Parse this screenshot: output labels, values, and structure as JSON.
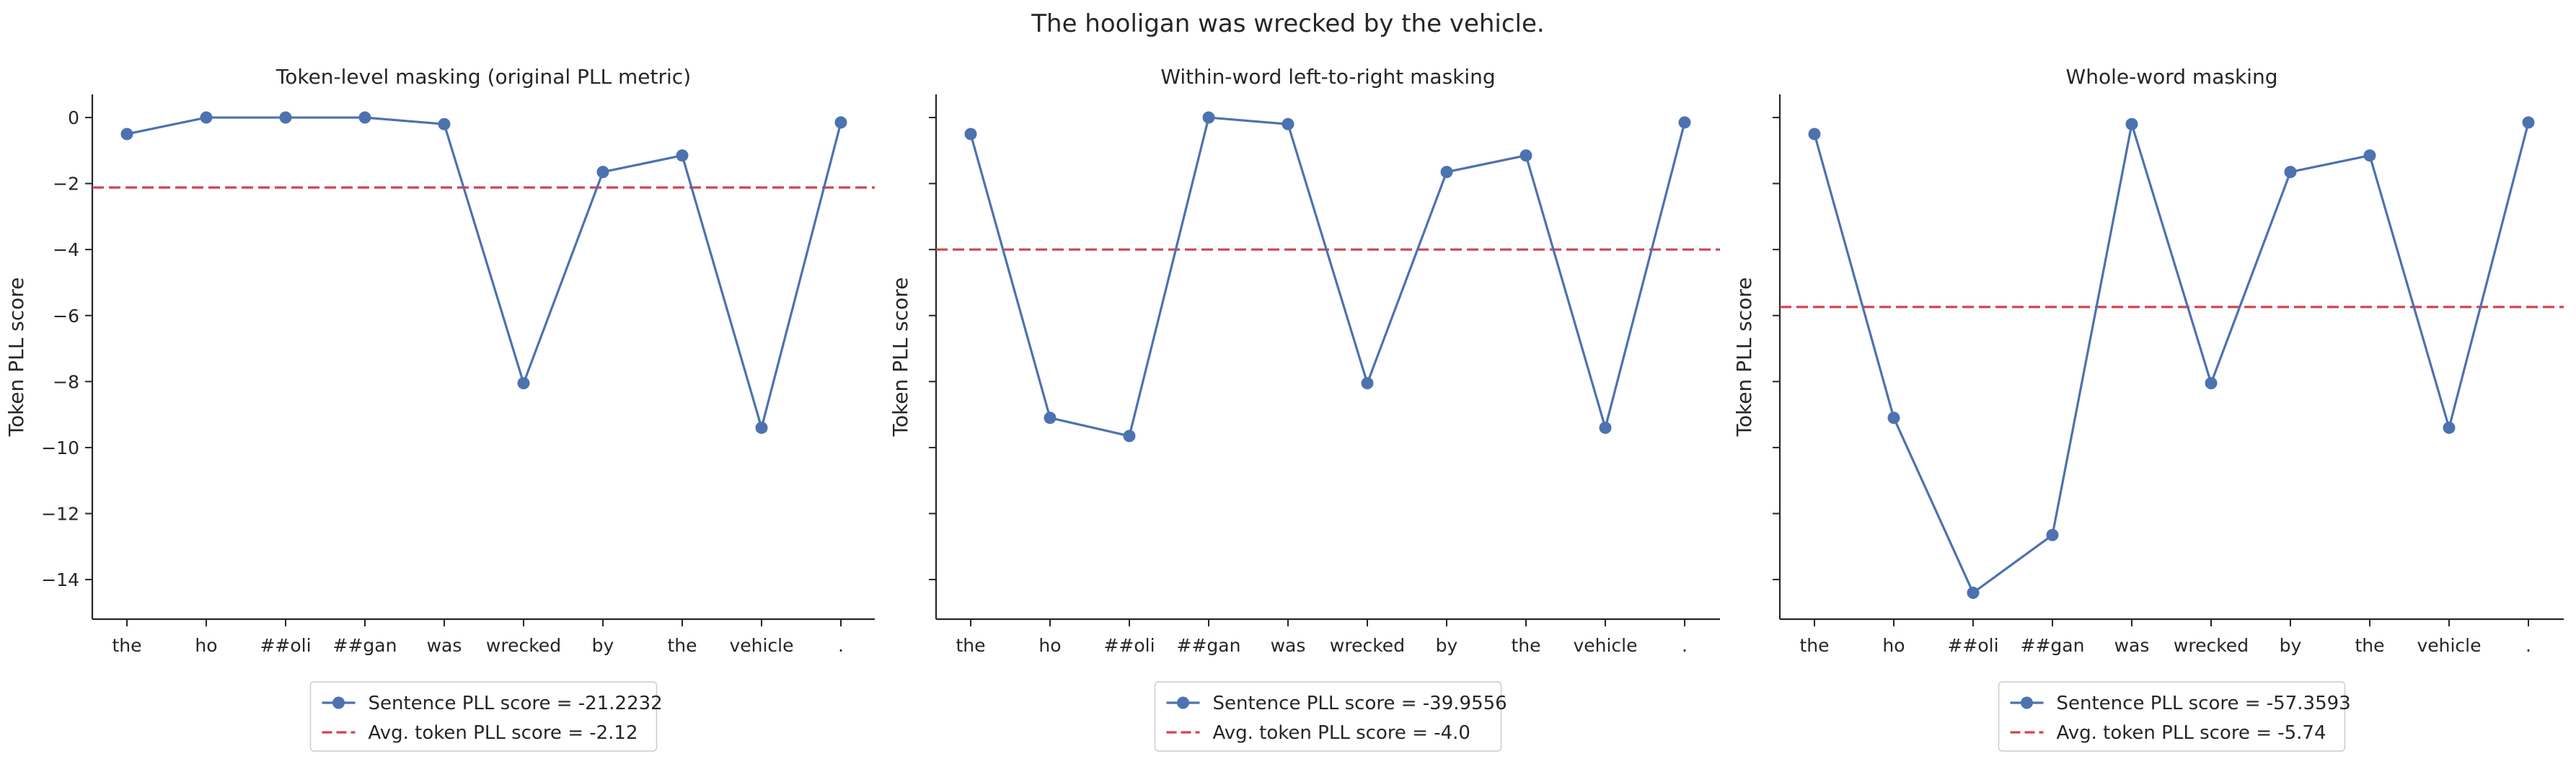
{
  "figure": {
    "suptitle": "The hooligan was wrecked by the vehicle."
  },
  "colors": {
    "series": "#4c72b0",
    "average": "#d1454f",
    "axis": "#262626"
  },
  "chart_data": [
    {
      "type": "line",
      "title": "Token-level masking (original PLL metric)",
      "xlabel": "",
      "ylabel": "Token PLL score",
      "categories": [
        "the",
        "ho",
        "##oli",
        "##gan",
        "was",
        "wrecked",
        "by",
        "the",
        "vehicle",
        "."
      ],
      "ylim": [
        -15.2,
        0.7
      ],
      "yticks": [
        0,
        -2,
        -4,
        -6,
        -8,
        -10,
        -12,
        -14
      ],
      "yticklabels": [
        "0",
        "−2",
        "−4",
        "−6",
        "−8",
        "−10",
        "−12",
        "−14"
      ],
      "grid": false,
      "legend_position": "below",
      "series": [
        {
          "name": "Sentence PLL score = -21.2232",
          "kind": "line-marker",
          "values": [
            -0.5,
            0.0,
            0.0,
            0.0,
            -0.2,
            -8.05,
            -1.65,
            -1.15,
            -9.4,
            -0.15
          ]
        },
        {
          "name": "Avg. token PLL score = -2.12",
          "kind": "hline",
          "value": -2.12
        }
      ]
    },
    {
      "type": "line",
      "title": "Within-word left-to-right masking",
      "xlabel": "",
      "ylabel": "Token PLL score",
      "categories": [
        "the",
        "ho",
        "##oli",
        "##gan",
        "was",
        "wrecked",
        "by",
        "the",
        "vehicle",
        "."
      ],
      "ylim": [
        -15.2,
        0.7
      ],
      "yticks": [
        0,
        -2,
        -4,
        -6,
        -8,
        -10,
        -12,
        -14
      ],
      "yticklabels": [
        "",
        "",
        "",
        "",
        "",
        "",
        "",
        ""
      ],
      "grid": false,
      "legend_position": "below",
      "series": [
        {
          "name": "Sentence PLL score = -39.9556",
          "kind": "line-marker",
          "values": [
            -0.5,
            -9.1,
            -9.65,
            0.0,
            -0.2,
            -8.05,
            -1.65,
            -1.15,
            -9.4,
            -0.15
          ]
        },
        {
          "name": "Avg. token PLL score = -4.0",
          "kind": "hline",
          "value": -4.0
        }
      ]
    },
    {
      "type": "line",
      "title": "Whole-word masking",
      "xlabel": "",
      "ylabel": "Token PLL score",
      "categories": [
        "the",
        "ho",
        "##oli",
        "##gan",
        "was",
        "wrecked",
        "by",
        "the",
        "vehicle",
        "."
      ],
      "ylim": [
        -15.2,
        0.7
      ],
      "yticks": [
        0,
        -2,
        -4,
        -6,
        -8,
        -10,
        -12,
        -14
      ],
      "yticklabels": [
        "",
        "",
        "",
        "",
        "",
        "",
        "",
        ""
      ],
      "grid": false,
      "legend_position": "below",
      "series": [
        {
          "name": "Sentence PLL score = -57.3593",
          "kind": "line-marker",
          "values": [
            -0.5,
            -9.1,
            -14.4,
            -12.65,
            -0.2,
            -8.05,
            -1.65,
            -1.15,
            -9.4,
            -0.15
          ]
        },
        {
          "name": "Avg. token PLL score = -5.74",
          "kind": "hline",
          "value": -5.74
        }
      ]
    }
  ]
}
